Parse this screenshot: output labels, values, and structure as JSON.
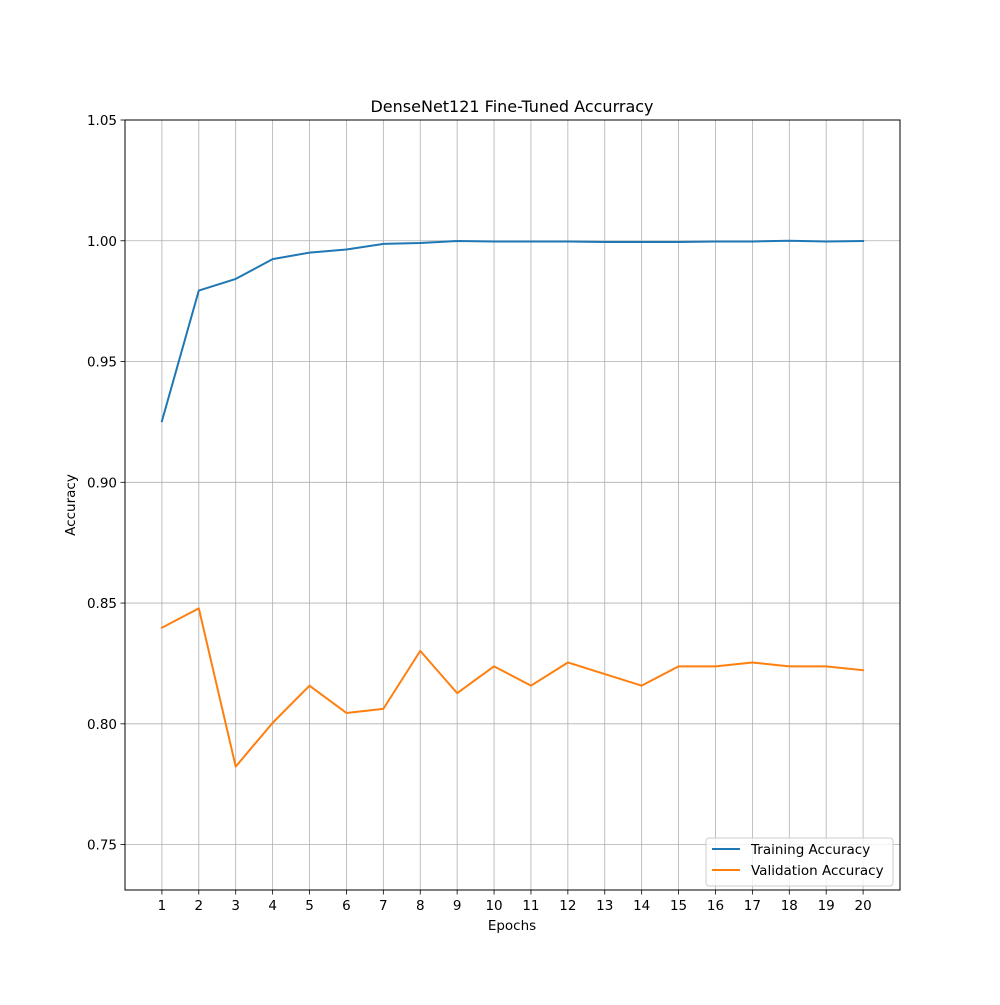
{
  "chart_data": {
    "type": "line",
    "title": "DenseNet121 Fine-Tuned Accurracy",
    "xlabel": "Epochs",
    "ylabel": "Accuracy",
    "x": [
      1,
      2,
      3,
      4,
      5,
      6,
      7,
      8,
      9,
      10,
      11,
      12,
      13,
      14,
      15,
      16,
      17,
      18,
      19,
      20
    ],
    "xticks": [
      "1",
      "2",
      "3",
      "4",
      "5",
      "6",
      "7",
      "8",
      "9",
      "10",
      "11",
      "12",
      "13",
      "14",
      "15",
      "16",
      "17",
      "18",
      "19",
      "20"
    ],
    "yticks": [
      "0.75",
      "0.80",
      "0.85",
      "0.90",
      "0.95",
      "1.00",
      "1.05"
    ],
    "ylim": [
      0.7312,
      1.05
    ],
    "xlim": [
      0,
      21
    ],
    "grid": true,
    "legend_position": "lower-right",
    "series": [
      {
        "name": "Training Accuracy",
        "color": "#1f77b4",
        "values": [
          0.9253,
          0.9794,
          0.9842,
          0.9924,
          0.9951,
          0.9964,
          0.9987,
          0.9991,
          0.9999,
          0.9997,
          0.9997,
          0.9997,
          0.9995,
          0.9995,
          0.9995,
          0.9997,
          0.9997,
          1.0,
          0.9997,
          0.9999
        ]
      },
      {
        "name": "Validation Accuracy",
        "color": "#ff7f0e",
        "values": [
          0.8398,
          0.8478,
          0.7823,
          0.8004,
          0.8158,
          0.8045,
          0.8062,
          0.8302,
          0.8127,
          0.8238,
          0.8158,
          0.8254,
          0.8206,
          0.8158,
          0.8238,
          0.8238,
          0.8254,
          0.8238,
          0.8238,
          0.8222
        ]
      }
    ]
  }
}
